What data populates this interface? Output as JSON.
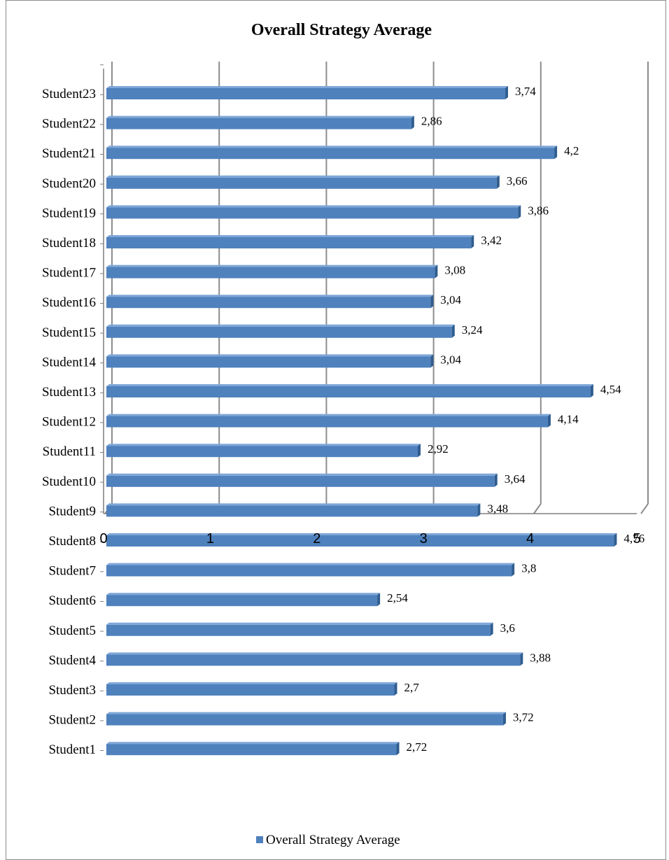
{
  "chart_data": {
    "type": "bar",
    "orientation": "horizontal",
    "title": "Overall Strategy Average",
    "categories": [
      "Student1",
      "Student2",
      "Student3",
      "Student4",
      "Student5",
      "Student6",
      "Student7",
      "Student8",
      "Student9",
      "Student10",
      "Student11",
      "Student12",
      "Student13",
      "Student14",
      "Student15",
      "Student16",
      "Student17",
      "Student18",
      "Student19",
      "Student20",
      "Student21",
      "Student22",
      "Student23"
    ],
    "series": [
      {
        "name": "Overall Strategy Average",
        "values": [
          2.72,
          3.72,
          2.7,
          3.88,
          3.6,
          2.54,
          3.8,
          4.76,
          3.48,
          3.64,
          2.92,
          4.14,
          4.54,
          3.04,
          3.24,
          3.04,
          3.08,
          3.42,
          3.86,
          3.66,
          4.2,
          2.86,
          3.74
        ],
        "labels": [
          "2,72",
          "3,72",
          "2,7",
          "3,88",
          "3,6",
          "2,54",
          "3,8",
          "4,76",
          "3,48",
          "3,64",
          "2,92",
          "4,14",
          "4,54",
          "3,04",
          "3,24",
          "3,04",
          "3,08",
          "3,42",
          "3,86",
          "3,66",
          "4,2",
          "2,86",
          "3,74"
        ]
      }
    ],
    "xlim": [
      0,
      5
    ],
    "xticks": [
      0,
      1,
      2,
      3,
      4,
      5
    ],
    "grid": true,
    "legend": "bottom",
    "colors": {
      "bar": "#4f81bd",
      "bar_dark": "#2f5d8f",
      "grid": "#8c8c8c"
    }
  }
}
